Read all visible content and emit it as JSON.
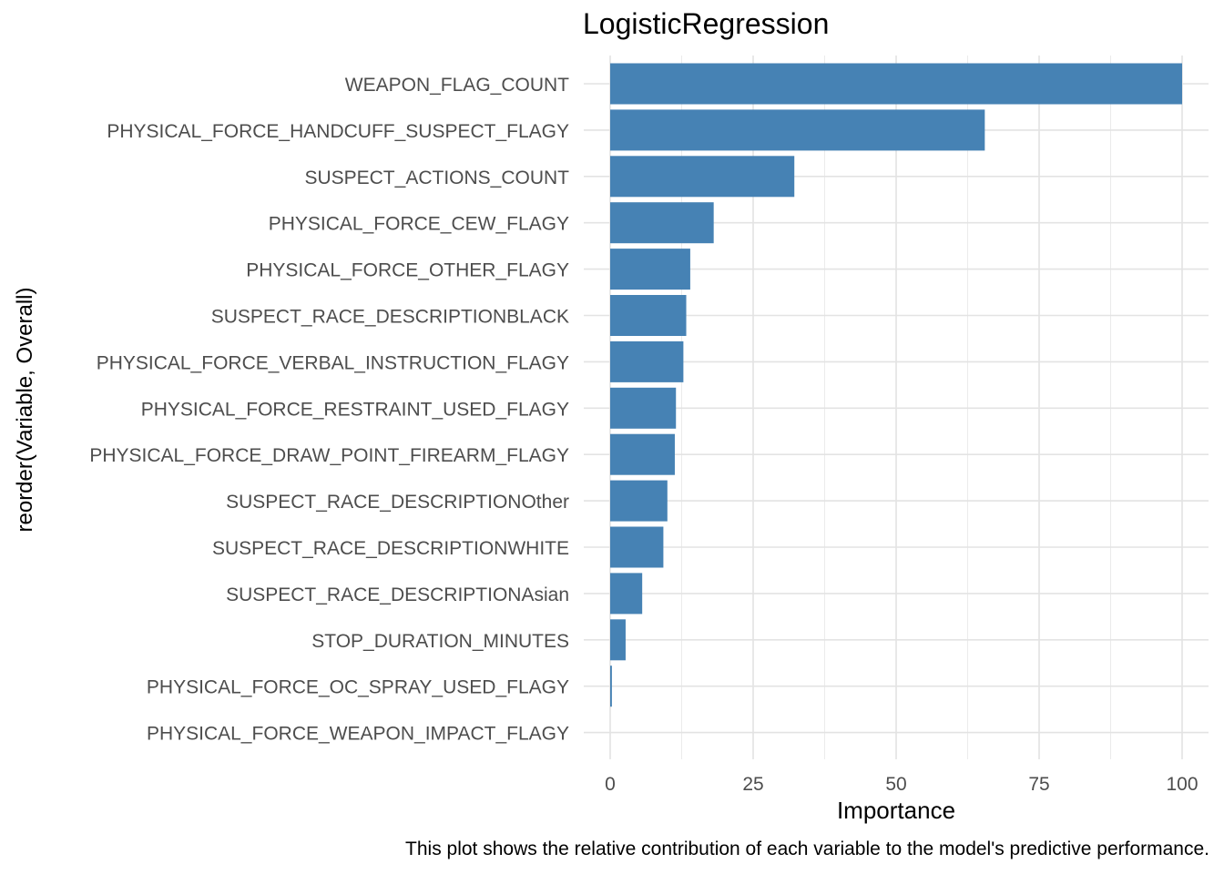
{
  "chart_data": {
    "type": "bar",
    "orientation": "horizontal",
    "title": "LogisticRegression",
    "xlabel": "Importance",
    "ylabel": "reorder(Variable, Overall)",
    "caption": "This plot shows the relative contribution of each variable to the model's predictive performance.",
    "xlim": [
      0,
      100
    ],
    "x_ticks": [
      "0",
      "25",
      "50",
      "75",
      "100"
    ],
    "grid": true,
    "bar_color": "#4682B4",
    "categories": [
      "WEAPON_FLAG_COUNT",
      "PHYSICAL_FORCE_HANDCUFF_SUSPECT_FLAGY",
      "SUSPECT_ACTIONS_COUNT",
      "PHYSICAL_FORCE_CEW_FLAGY",
      "PHYSICAL_FORCE_OTHER_FLAGY",
      "SUSPECT_RACE_DESCRIPTIONBLACK",
      "PHYSICAL_FORCE_VERBAL_INSTRUCTION_FLAGY",
      "PHYSICAL_FORCE_RESTRAINT_USED_FLAGY",
      "PHYSICAL_FORCE_DRAW_POINT_FIREARM_FLAGY",
      "SUSPECT_RACE_DESCRIPTIONOther",
      "SUSPECT_RACE_DESCRIPTIONWHITE",
      "SUSPECT_RACE_DESCRIPTIONAsian",
      "STOP_DURATION_MINUTES",
      "PHYSICAL_FORCE_OC_SPRAY_USED_FLAGY",
      "PHYSICAL_FORCE_WEAPON_IMPACT_FLAGY"
    ],
    "values": [
      100,
      65.5,
      32.2,
      18.1,
      14.0,
      13.3,
      12.8,
      11.5,
      11.3,
      10.0,
      9.3,
      5.6,
      2.7,
      0.3,
      0
    ]
  }
}
